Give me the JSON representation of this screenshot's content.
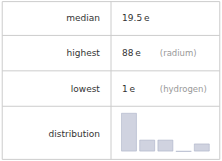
{
  "chart_data": {
    "type": "bar",
    "annotations": [
      [
        "median",
        "19.5 e"
      ],
      [
        "highest",
        "88 e",
        "(radium)"
      ],
      [
        "lowest",
        "1 e",
        "(hydrogen)"
      ],
      [
        "distribution"
      ]
    ],
    "categories": [
      null,
      null,
      null,
      null,
      null
    ],
    "values": [
      10,
      3,
      3,
      0,
      2
    ],
    "color": "#d0d3e0",
    "ylim": [
      0,
      10.5
    ],
    "tick_labels": false,
    "grid": false
  }
}
